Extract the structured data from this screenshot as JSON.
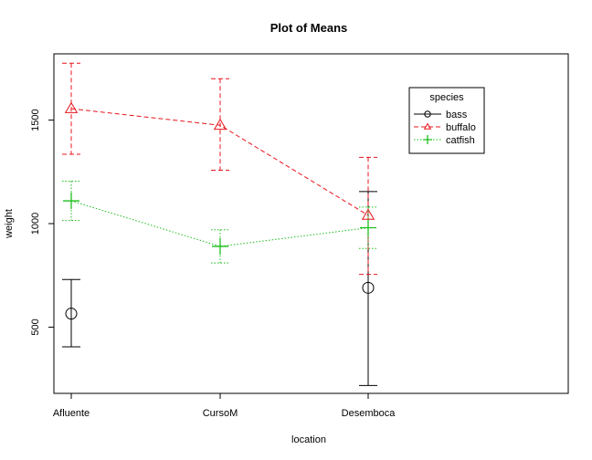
{
  "chart_data": {
    "type": "line",
    "title": "Plot of Means",
    "xlabel": "location",
    "ylabel": "weight",
    "categories": [
      "Afluente",
      "CursoM",
      "Desemboca"
    ],
    "yticks": [
      500,
      1000,
      1500
    ],
    "ylim": [
      180,
      1820
    ],
    "grid": false,
    "legend_title": "species",
    "legend_position": "top-right",
    "series": [
      {
        "name": "bass",
        "color": "#000000",
        "marker": "circle",
        "line": "solid",
        "connected": false,
        "values": [
          565,
          null,
          690
        ],
        "lower": [
          405,
          null,
          218
        ],
        "upper": [
          730,
          null,
          1155
        ]
      },
      {
        "name": "buffalo",
        "color": "#e8141c",
        "marker": "triangle",
        "line": "dashed",
        "connected": true,
        "values": [
          1555,
          1475,
          1040
        ],
        "lower": [
          1335,
          1258,
          755
        ],
        "upper": [
          1775,
          1700,
          1320
        ]
      },
      {
        "name": "catfish",
        "color": "#1cbf1c",
        "marker": "plus",
        "line": "dotted",
        "connected": true,
        "values": [
          1110,
          890,
          980
        ],
        "lower": [
          1015,
          810,
          880
        ],
        "upper": [
          1205,
          970,
          1080
        ]
      }
    ]
  }
}
